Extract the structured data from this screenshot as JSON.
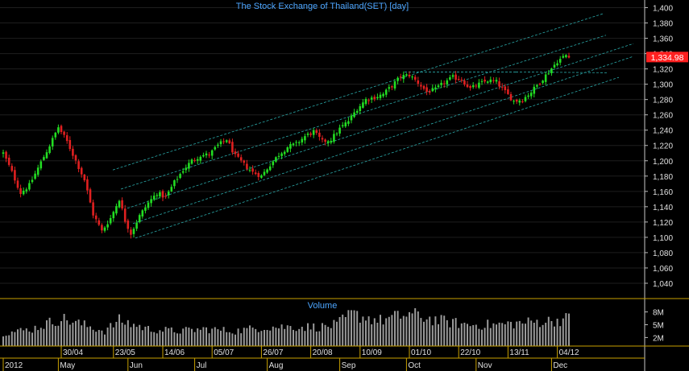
{
  "chart_data": {
    "type": "candlestick",
    "title": "The Stock Exchange of Thailand(SET) [day]",
    "ylim": [
      1020,
      1410
    ],
    "yticks": [
      1040,
      1060,
      1080,
      1100,
      1120,
      1140,
      1160,
      1180,
      1200,
      1220,
      1240,
      1260,
      1280,
      1300,
      1320,
      1340,
      1360,
      1380,
      1400
    ],
    "ytick_labels": [
      "1,040",
      "1,060",
      "1,080",
      "1,100",
      "1,120",
      "1,140",
      "1,160",
      "1,180",
      "1,200",
      "1,220",
      "1,240",
      "1,260",
      "1,280",
      "1,300",
      "1,320",
      "1,340",
      "1,360",
      "1,380",
      "1,400"
    ],
    "last_price_label": "1,334.98",
    "last_price": 1334.98,
    "date_ticks": [
      {
        "index": 20,
        "label": "30/04"
      },
      {
        "index": 38,
        "label": "23/05"
      },
      {
        "index": 55,
        "label": "14/06"
      },
      {
        "index": 72,
        "label": "05/07"
      },
      {
        "index": 89,
        "label": "26/07"
      },
      {
        "index": 106,
        "label": "20/08"
      },
      {
        "index": 123,
        "label": "10/09"
      },
      {
        "index": 140,
        "label": "01/10"
      },
      {
        "index": 157,
        "label": "22/10"
      },
      {
        "index": 174,
        "label": "13/11"
      },
      {
        "index": 191,
        "label": "04/12"
      }
    ],
    "month_ticks": [
      {
        "index": 0,
        "label": "2012"
      },
      {
        "index": 19,
        "label": "May"
      },
      {
        "index": 43,
        "label": "Jun"
      },
      {
        "index": 66,
        "label": "Jul"
      },
      {
        "index": 91,
        "label": "Aug"
      },
      {
        "index": 116,
        "label": "Sep"
      },
      {
        "index": 139,
        "label": "Oct"
      },
      {
        "index": 163,
        "label": "Nov"
      },
      {
        "index": 189,
        "label": "Dec"
      }
    ],
    "price_anchors": [
      [
        0,
        1210
      ],
      [
        3,
        1185
      ],
      [
        6,
        1158
      ],
      [
        9,
        1168
      ],
      [
        13,
        1198
      ],
      [
        16,
        1220
      ],
      [
        19,
        1244
      ],
      [
        22,
        1225
      ],
      [
        25,
        1200
      ],
      [
        28,
        1175
      ],
      [
        31,
        1130
      ],
      [
        34,
        1108
      ],
      [
        37,
        1125
      ],
      [
        40,
        1150
      ],
      [
        42,
        1122
      ],
      [
        44,
        1105
      ],
      [
        47,
        1128
      ],
      [
        50,
        1145
      ],
      [
        53,
        1158
      ],
      [
        56,
        1152
      ],
      [
        59,
        1172
      ],
      [
        62,
        1188
      ],
      [
        65,
        1200
      ],
      [
        68,
        1207
      ],
      [
        71,
        1208
      ],
      [
        74,
        1220
      ],
      [
        77,
        1228
      ],
      [
        80,
        1206
      ],
      [
        83,
        1195
      ],
      [
        86,
        1185
      ],
      [
        89,
        1180
      ],
      [
        92,
        1195
      ],
      [
        95,
        1208
      ],
      [
        98,
        1218
      ],
      [
        101,
        1222
      ],
      [
        104,
        1232
      ],
      [
        107,
        1238
      ],
      [
        110,
        1225
      ],
      [
        113,
        1228
      ],
      [
        116,
        1242
      ],
      [
        119,
        1252
      ],
      [
        122,
        1268
      ],
      [
        125,
        1280
      ],
      [
        128,
        1283
      ],
      [
        131,
        1287
      ],
      [
        134,
        1298
      ],
      [
        137,
        1310
      ],
      [
        140,
        1312
      ],
      [
        143,
        1302
      ],
      [
        146,
        1290
      ],
      [
        149,
        1293
      ],
      [
        152,
        1302
      ],
      [
        155,
        1309
      ],
      [
        158,
        1306
      ],
      [
        161,
        1294
      ],
      [
        164,
        1300
      ],
      [
        167,
        1305
      ],
      [
        170,
        1303
      ],
      [
        173,
        1290
      ],
      [
        176,
        1278
      ],
      [
        179,
        1280
      ],
      [
        182,
        1290
      ],
      [
        185,
        1303
      ],
      [
        188,
        1316
      ],
      [
        191,
        1330
      ],
      [
        194,
        1338
      ],
      [
        195,
        1335
      ]
    ],
    "volume": {
      "title": "Volume",
      "ylim": [
        0,
        10
      ],
      "unit": "M",
      "yticks": [
        2,
        5,
        8
      ],
      "ytick_labels": [
        "2M",
        "5M",
        "8M"
      ],
      "anchors": [
        [
          0,
          3.0
        ],
        [
          10,
          4.0
        ],
        [
          20,
          6.5
        ],
        [
          25,
          5.5
        ],
        [
          35,
          3.5
        ],
        [
          40,
          6.0
        ],
        [
          50,
          4.0
        ],
        [
          60,
          3.5
        ],
        [
          70,
          4.0
        ],
        [
          80,
          3.5
        ],
        [
          90,
          4.5
        ],
        [
          100,
          4.5
        ],
        [
          110,
          4.5
        ],
        [
          115,
          5.0
        ],
        [
          120,
          7.5
        ],
        [
          130,
          6.0
        ],
        [
          140,
          7.5
        ],
        [
          150,
          6.0
        ],
        [
          160,
          5.0
        ],
        [
          170,
          5.0
        ],
        [
          180,
          5.5
        ],
        [
          190,
          6.0
        ],
        [
          195,
          6.5
        ]
      ]
    }
  }
}
